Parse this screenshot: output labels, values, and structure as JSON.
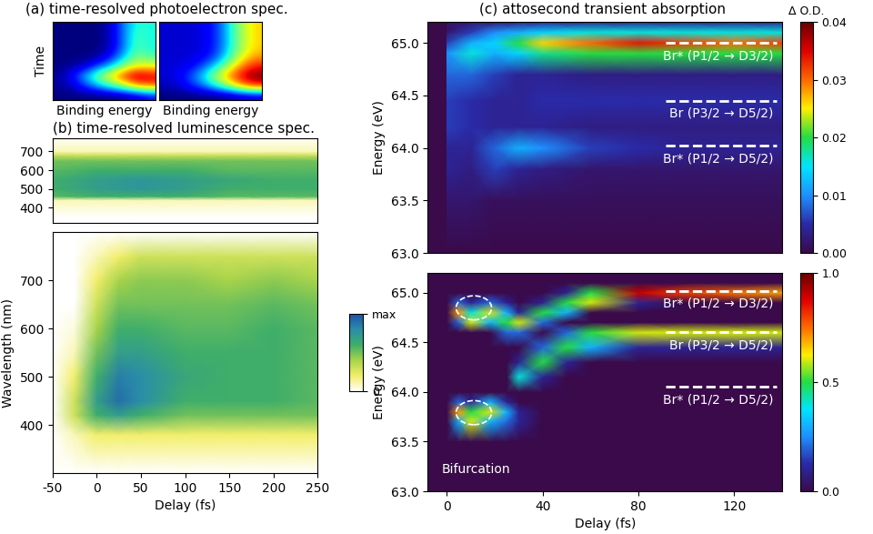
{
  "chart_data": [
    {
      "type": "heatmap",
      "title": "(a) time-resolved photoelectron spec.",
      "x_label": "Binding energy",
      "y_label": "Time",
      "tick_labels": false,
      "color": "jet",
      "cells": [
        [
          0.1,
          0.1,
          0.1,
          0.1,
          0.1,
          0.12,
          0.15,
          0.2
        ],
        [
          0.12,
          0.15,
          0.25,
          0.35,
          0.45,
          0.55,
          0.7,
          0.75
        ],
        [
          0.12,
          0.2,
          0.35,
          0.5,
          0.65,
          0.8,
          0.9,
          0.85
        ],
        [
          0.1,
          0.12,
          0.15,
          0.25,
          0.35,
          0.5,
          0.6,
          0.6
        ],
        [
          0.1,
          0.1,
          0.1,
          0.12,
          0.2,
          0.35,
          0.5,
          0.45
        ],
        [
          0.1,
          0.1,
          0.1,
          0.1,
          0.15,
          0.3,
          0.45,
          0.4
        ],
        [
          0.1,
          0.1,
          0.1,
          0.1,
          0.15,
          0.3,
          0.45,
          0.4
        ],
        [
          0.1,
          0.1,
          0.1,
          0.1,
          0.15,
          0.3,
          0.42,
          0.4
        ]
      ]
    },
    {
      "type": "heatmap",
      "x_label": "Binding energy",
      "tick_labels": false,
      "color": "jet",
      "cells": [
        [
          0.05,
          0.05,
          0.05,
          0.05,
          0.05,
          0.08,
          0.1,
          0.12
        ],
        [
          0.1,
          0.12,
          0.2,
          0.3,
          0.45,
          0.6,
          0.8,
          0.9
        ],
        [
          0.12,
          0.15,
          0.25,
          0.4,
          0.6,
          0.8,
          0.95,
          1.0
        ],
        [
          0.12,
          0.13,
          0.15,
          0.25,
          0.4,
          0.6,
          0.8,
          0.9
        ],
        [
          0.12,
          0.12,
          0.13,
          0.15,
          0.25,
          0.45,
          0.65,
          0.75
        ],
        [
          0.12,
          0.12,
          0.12,
          0.14,
          0.22,
          0.4,
          0.6,
          0.7
        ],
        [
          0.12,
          0.12,
          0.12,
          0.14,
          0.22,
          0.4,
          0.6,
          0.7
        ],
        [
          0.12,
          0.12,
          0.12,
          0.14,
          0.22,
          0.4,
          0.6,
          0.7
        ]
      ]
    },
    {
      "type": "heatmap",
      "title": "(b) time-resolved luminescence spec.",
      "tick_labels": "y",
      "color": "white-yellow-green-blue",
      "x": [
        -50,
        0,
        50,
        100,
        150,
        200,
        250
      ],
      "y": [
        350,
        440,
        460,
        500,
        550,
        600,
        650,
        680,
        700,
        780
      ],
      "xlim": [
        -50,
        250
      ],
      "ylim": [
        320,
        770
      ],
      "yticks": [
        400,
        500,
        600,
        700
      ],
      "cells": [
        [
          0,
          0,
          0,
          0,
          0,
          0,
          0
        ],
        [
          0.1,
          0.1,
          0.1,
          0.1,
          0.1,
          0.1,
          0.1
        ],
        [
          0.55,
          0.6,
          0.6,
          0.6,
          0.55,
          0.55,
          0.55
        ],
        [
          0.6,
          0.7,
          0.75,
          0.7,
          0.6,
          0.6,
          0.6
        ],
        [
          0.6,
          0.7,
          0.75,
          0.7,
          0.65,
          0.6,
          0.6
        ],
        [
          0.55,
          0.6,
          0.6,
          0.6,
          0.55,
          0.55,
          0.55
        ],
        [
          0.5,
          0.5,
          0.5,
          0.5,
          0.5,
          0.5,
          0.5
        ],
        [
          0.3,
          0.3,
          0.3,
          0.3,
          0.3,
          0.3,
          0.3
        ],
        [
          0.1,
          0.1,
          0.1,
          0.1,
          0.1,
          0.1,
          0.1
        ],
        [
          0,
          0,
          0,
          0,
          0,
          0,
          0
        ]
      ]
    },
    {
      "type": "heatmap",
      "x_label": "Delay (fs)",
      "y_label": "Wavelength (nm)",
      "color": "white-yellow-green-blue",
      "x": [
        -50,
        -25,
        0,
        25,
        50,
        100,
        150,
        200,
        250
      ],
      "y": [
        300,
        380,
        420,
        450,
        500,
        550,
        600,
        650,
        700,
        750,
        800
      ],
      "xlim": [
        -50,
        250
      ],
      "ylim": [
        300,
        800
      ],
      "xticks": [
        -50,
        0,
        50,
        100,
        150,
        200,
        250
      ],
      "yticks": [
        400,
        500,
        600,
        700
      ],
      "cells": [
        [
          0,
          0,
          0,
          0,
          0,
          0,
          0,
          0,
          0
        ],
        [
          0,
          0.1,
          0.2,
          0.2,
          0.2,
          0.2,
          0.2,
          0.2,
          0.2
        ],
        [
          0,
          0.3,
          0.6,
          0.7,
          0.6,
          0.5,
          0.5,
          0.5,
          0.5
        ],
        [
          0,
          0.3,
          0.7,
          0.9,
          0.8,
          0.6,
          0.6,
          0.6,
          0.55
        ],
        [
          0,
          0.2,
          0.6,
          0.85,
          0.8,
          0.65,
          0.6,
          0.6,
          0.55
        ],
        [
          0,
          0.1,
          0.5,
          0.7,
          0.7,
          0.6,
          0.6,
          0.6,
          0.55
        ],
        [
          0,
          0.05,
          0.4,
          0.6,
          0.6,
          0.55,
          0.55,
          0.6,
          0.55
        ],
        [
          0,
          0,
          0.3,
          0.5,
          0.5,
          0.5,
          0.5,
          0.55,
          0.5
        ],
        [
          0,
          0,
          0.2,
          0.4,
          0.45,
          0.45,
          0.4,
          0.45,
          0.4
        ],
        [
          0,
          0,
          0.1,
          0.2,
          0.3,
          0.3,
          0.3,
          0.3,
          0.3
        ],
        [
          0,
          0,
          0,
          0,
          0,
          0,
          0,
          0,
          0
        ]
      ],
      "colorbar_range": [
        0,
        1
      ],
      "colorbar_ticks": [
        {
          "value": 0,
          "label": "0"
        },
        {
          "value": 1,
          "label": "max"
        }
      ]
    },
    {
      "type": "heatmap",
      "title": "(c) attosecond transient absorption",
      "y_label": "Energy (eV)",
      "tick_labels": "y",
      "color": "purple-jet",
      "x": [
        0,
        10,
        20,
        30,
        40,
        60,
        80,
        100,
        120,
        140
      ],
      "y": [
        63.0,
        63.5,
        63.8,
        64.0,
        64.2,
        64.45,
        64.7,
        64.9,
        65.0,
        65.1,
        65.2
      ],
      "xlim": [
        -8,
        140
      ],
      "ylim": [
        63.0,
        65.2
      ],
      "yticks": [
        63.0,
        63.5,
        64.0,
        64.5,
        65.0
      ],
      "cells": [
        [
          0,
          0,
          0,
          0,
          0,
          0,
          0,
          0,
          0,
          0
        ],
        [
          0.002,
          0.002,
          0.001,
          0.001,
          0.001,
          0.001,
          0.001,
          0.001,
          0.001,
          0.001
        ],
        [
          0.004,
          0.003,
          0.006,
          0.004,
          0.003,
          0.002,
          0.002,
          0.002,
          0.002,
          0.002
        ],
        [
          0.004,
          0.004,
          0.008,
          0.012,
          0.01,
          0.006,
          0.005,
          0.004,
          0.004,
          0.004
        ],
        [
          0.006,
          0.005,
          0.004,
          0.004,
          0.004,
          0.003,
          0.003,
          0.003,
          0.003,
          0.003
        ],
        [
          0.006,
          0.005,
          0.004,
          0.004,
          0.005,
          0.005,
          0.005,
          0.005,
          0.005,
          0.005
        ],
        [
          0.008,
          0.008,
          0.006,
          0.004,
          0.004,
          0.003,
          0.003,
          0.003,
          0.003,
          0.003
        ],
        [
          0.01,
          0.016,
          0.012,
          0.014,
          0.018,
          0.02,
          0.02,
          0.02,
          0.02,
          0.02
        ],
        [
          0.006,
          0.012,
          0.014,
          0.02,
          0.026,
          0.03,
          0.034,
          0.032,
          0.03,
          0.032
        ],
        [
          0.002,
          0.006,
          0.01,
          0.012,
          0.014,
          0.016,
          0.016,
          0.016,
          0.016,
          0.016
        ],
        [
          0.001,
          0.002,
          0.002,
          0.003,
          0.004,
          0.004,
          0.004,
          0.004,
          0.004,
          0.004
        ]
      ],
      "colorbar_label": "Δ O.D.",
      "colorbar_range": [
        0,
        0.04
      ],
      "colorbar_ticks": [
        {
          "value": 0,
          "label": "0.00"
        },
        0.01,
        0.02,
        0.03,
        0.04
      ],
      "levels": [
        {
          "label": "Br* (P1/2 → D3/2)",
          "value": 65.0
        },
        {
          "label": "Br (P3/2 → D5/2)",
          "value": 64.45
        },
        {
          "label": "Br* (P1/2 → D5/2)",
          "value": 64.02
        }
      ]
    },
    {
      "type": "heatmap",
      "x_label": "Delay (fs)",
      "y_label": "Energy (eV)",
      "color": "purple-jet",
      "x": [
        0,
        5,
        10,
        18,
        25,
        30,
        40,
        50,
        60,
        80,
        100,
        140
      ],
      "y": [
        63.0,
        63.5,
        63.7,
        63.8,
        63.9,
        64.0,
        64.15,
        64.3,
        64.45,
        64.6,
        64.7,
        64.8,
        64.9,
        65.0,
        65.1,
        65.2
      ],
      "xlim": [
        -8,
        140
      ],
      "ylim": [
        63.0,
        65.2
      ],
      "xticks": [
        0,
        40,
        80,
        120
      ],
      "yticks": [
        63.0,
        63.5,
        64.0,
        64.5,
        65.0
      ],
      "cells": [
        [
          0,
          0,
          0,
          0,
          0,
          0,
          0,
          0,
          0,
          0,
          0,
          0
        ],
        [
          0,
          0,
          0,
          0,
          0,
          0,
          0,
          0,
          0,
          0,
          0,
          0
        ],
        [
          0,
          0.3,
          0.6,
          0.3,
          0.2,
          0.1,
          0,
          0,
          0,
          0,
          0,
          0
        ],
        [
          0,
          0.7,
          0.5,
          0.6,
          0.3,
          0.1,
          0,
          0,
          0,
          0,
          0,
          0
        ],
        [
          0,
          0.2,
          0.1,
          0.3,
          0.1,
          0,
          0,
          0,
          0,
          0,
          0,
          0
        ],
        [
          0,
          0,
          0,
          0,
          0,
          0,
          0,
          0,
          0,
          0,
          0,
          0
        ],
        [
          0,
          0,
          0,
          0,
          0,
          0.4,
          0.1,
          0,
          0,
          0,
          0,
          0
        ],
        [
          0,
          0,
          0,
          0,
          0,
          0.1,
          0.5,
          0.1,
          0,
          0,
          0,
          0
        ],
        [
          0,
          0,
          0,
          0,
          0,
          0,
          0.2,
          0.5,
          0.3,
          0.1,
          0.1,
          0.1
        ],
        [
          0,
          0,
          0,
          0,
          0.2,
          0.2,
          0,
          0.2,
          0.5,
          0.6,
          0.6,
          0.6
        ],
        [
          0,
          0.2,
          0.6,
          0.3,
          0.5,
          0.6,
          0.2,
          0,
          0,
          0,
          0,
          0
        ],
        [
          0,
          0.7,
          0.4,
          0.6,
          0.3,
          0.1,
          0.5,
          0.3,
          0,
          0,
          0,
          0
        ],
        [
          0,
          0.2,
          0.1,
          0.2,
          0.1,
          0,
          0.1,
          0.5,
          0.6,
          0.1,
          0,
          0
        ],
        [
          0,
          0,
          0,
          0,
          0,
          0,
          0,
          0.1,
          0.5,
          0.9,
          0.8,
          0.7
        ],
        [
          0,
          0,
          0,
          0,
          0,
          0,
          0,
          0,
          0,
          0,
          0,
          0
        ],
        [
          0,
          0,
          0,
          0,
          0,
          0,
          0,
          0,
          0,
          0,
          0,
          0
        ]
      ],
      "colorbar_range": [
        0.0,
        1.0
      ],
      "colorbar_ticks": [
        0.0,
        0.5,
        1.0
      ],
      "levels": [
        {
          "label": "Br* (P1/2 → D3/2)",
          "value": 65.02
        },
        {
          "label": "Br (P3/2 → D5/2)",
          "value": 64.6
        },
        {
          "label": "Br* (P1/2 → D5/2)",
          "value": 64.05
        }
      ],
      "annotations": [
        {
          "text": "Bifurcation"
        }
      ]
    }
  ]
}
